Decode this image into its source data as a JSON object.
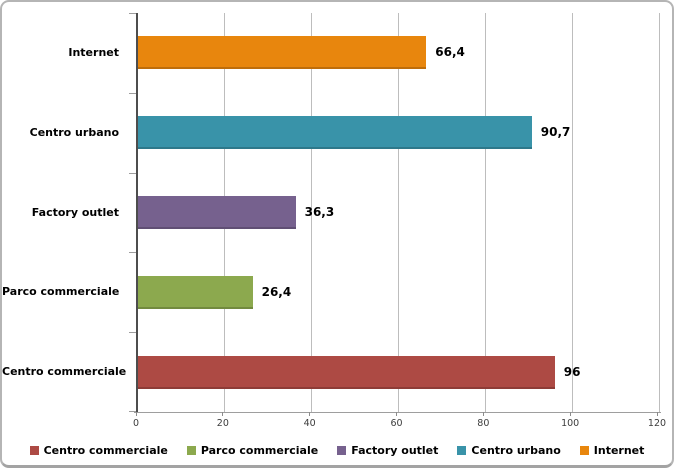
{
  "chart_data": {
    "type": "bar",
    "orientation": "horizontal",
    "title": "",
    "categories": [
      "Internet",
      "Centro urbano",
      "Factory outlet",
      "Parco commerciale",
      "Centro commerciale"
    ],
    "values": [
      66.4,
      90.7,
      36.3,
      26.4,
      96
    ],
    "value_labels": [
      "66,4",
      "90,7",
      "36,3",
      "26,4",
      "96"
    ],
    "bar_colors": [
      "#e8860d",
      "#3993a9",
      "#76618e",
      "#8ca94e",
      "#ad4a44"
    ],
    "xlabel": "",
    "ylabel": "",
    "xlim": [
      0,
      120
    ],
    "xticks": [
      0,
      20,
      40,
      60,
      80,
      100,
      120
    ],
    "grid": true,
    "legend": {
      "position": "bottom",
      "entries": [
        {
          "label": "Centro commerciale",
          "color": "#ad4a44"
        },
        {
          "label": "Parco commerciale",
          "color": "#8ca94e"
        },
        {
          "label": "Factory outlet",
          "color": "#76618e"
        },
        {
          "label": "Centro urbano",
          "color": "#3993a9"
        },
        {
          "label": "Internet",
          "color": "#e8860d"
        }
      ]
    },
    "frame": {
      "border_color": "#b5b5b5",
      "gridline_color": "#bdbdbd",
      "axis_color": "#4d4d4d"
    }
  }
}
